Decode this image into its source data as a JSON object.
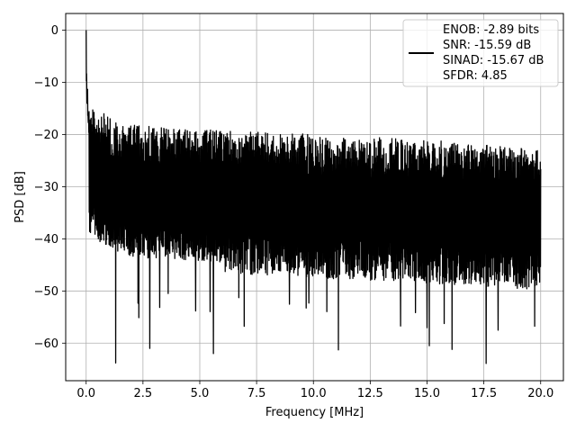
{
  "chart_data": {
    "type": "line",
    "xlabel": "Frequency [MHz]",
    "ylabel": "PSD [dB]",
    "xlim": [
      -0.9,
      21.0
    ],
    "ylim": [
      -67.2,
      3.2
    ],
    "xticks": [
      0.0,
      2.5,
      5.0,
      7.5,
      10.0,
      12.5,
      15.0,
      17.5,
      20.0
    ],
    "xtick_labels": [
      "0.0",
      "2.5",
      "5.0",
      "7.5",
      "10.0",
      "12.5",
      "15.0",
      "17.5",
      "20.0"
    ],
    "yticks": [
      0,
      -10,
      -20,
      -30,
      -40,
      -50,
      -60
    ],
    "ytick_labels": [
      "0",
      "−10",
      "−20",
      "−30",
      "−40",
      "−50",
      "−60"
    ],
    "grid": true,
    "legend_position": "top-right",
    "legend_entries": [
      "ENOB: -2.89 bits",
      "SNR: -15.59 dB",
      "SINAD: -15.67 dB",
      "SFDR: 4.85"
    ],
    "series": [
      {
        "color": "#000000",
        "x_range": [
          0.0,
          20.0
        ],
        "peak": {
          "x": 0.0,
          "y": 0.0
        },
        "noise_floor_upper_envelope": [
          [
            0.1,
            -14
          ],
          [
            1.5,
            -18
          ],
          [
            5,
            -19
          ],
          [
            10,
            -20
          ],
          [
            15,
            -21
          ],
          [
            20,
            -23
          ]
        ],
        "noise_floor_lower_envelope": [
          [
            0.2,
            -40
          ],
          [
            2,
            -44
          ],
          [
            10,
            -46
          ],
          [
            15,
            -47
          ],
          [
            20,
            -48
          ]
        ],
        "notable_dips": [
          [
            1.3,
            -63.8
          ],
          [
            2.8,
            -61
          ],
          [
            5.6,
            -62
          ],
          [
            11.1,
            -61.3
          ],
          [
            15.1,
            -60.5
          ],
          [
            16.1,
            -61.2
          ],
          [
            17.6,
            -63.9
          ]
        ]
      }
    ]
  }
}
